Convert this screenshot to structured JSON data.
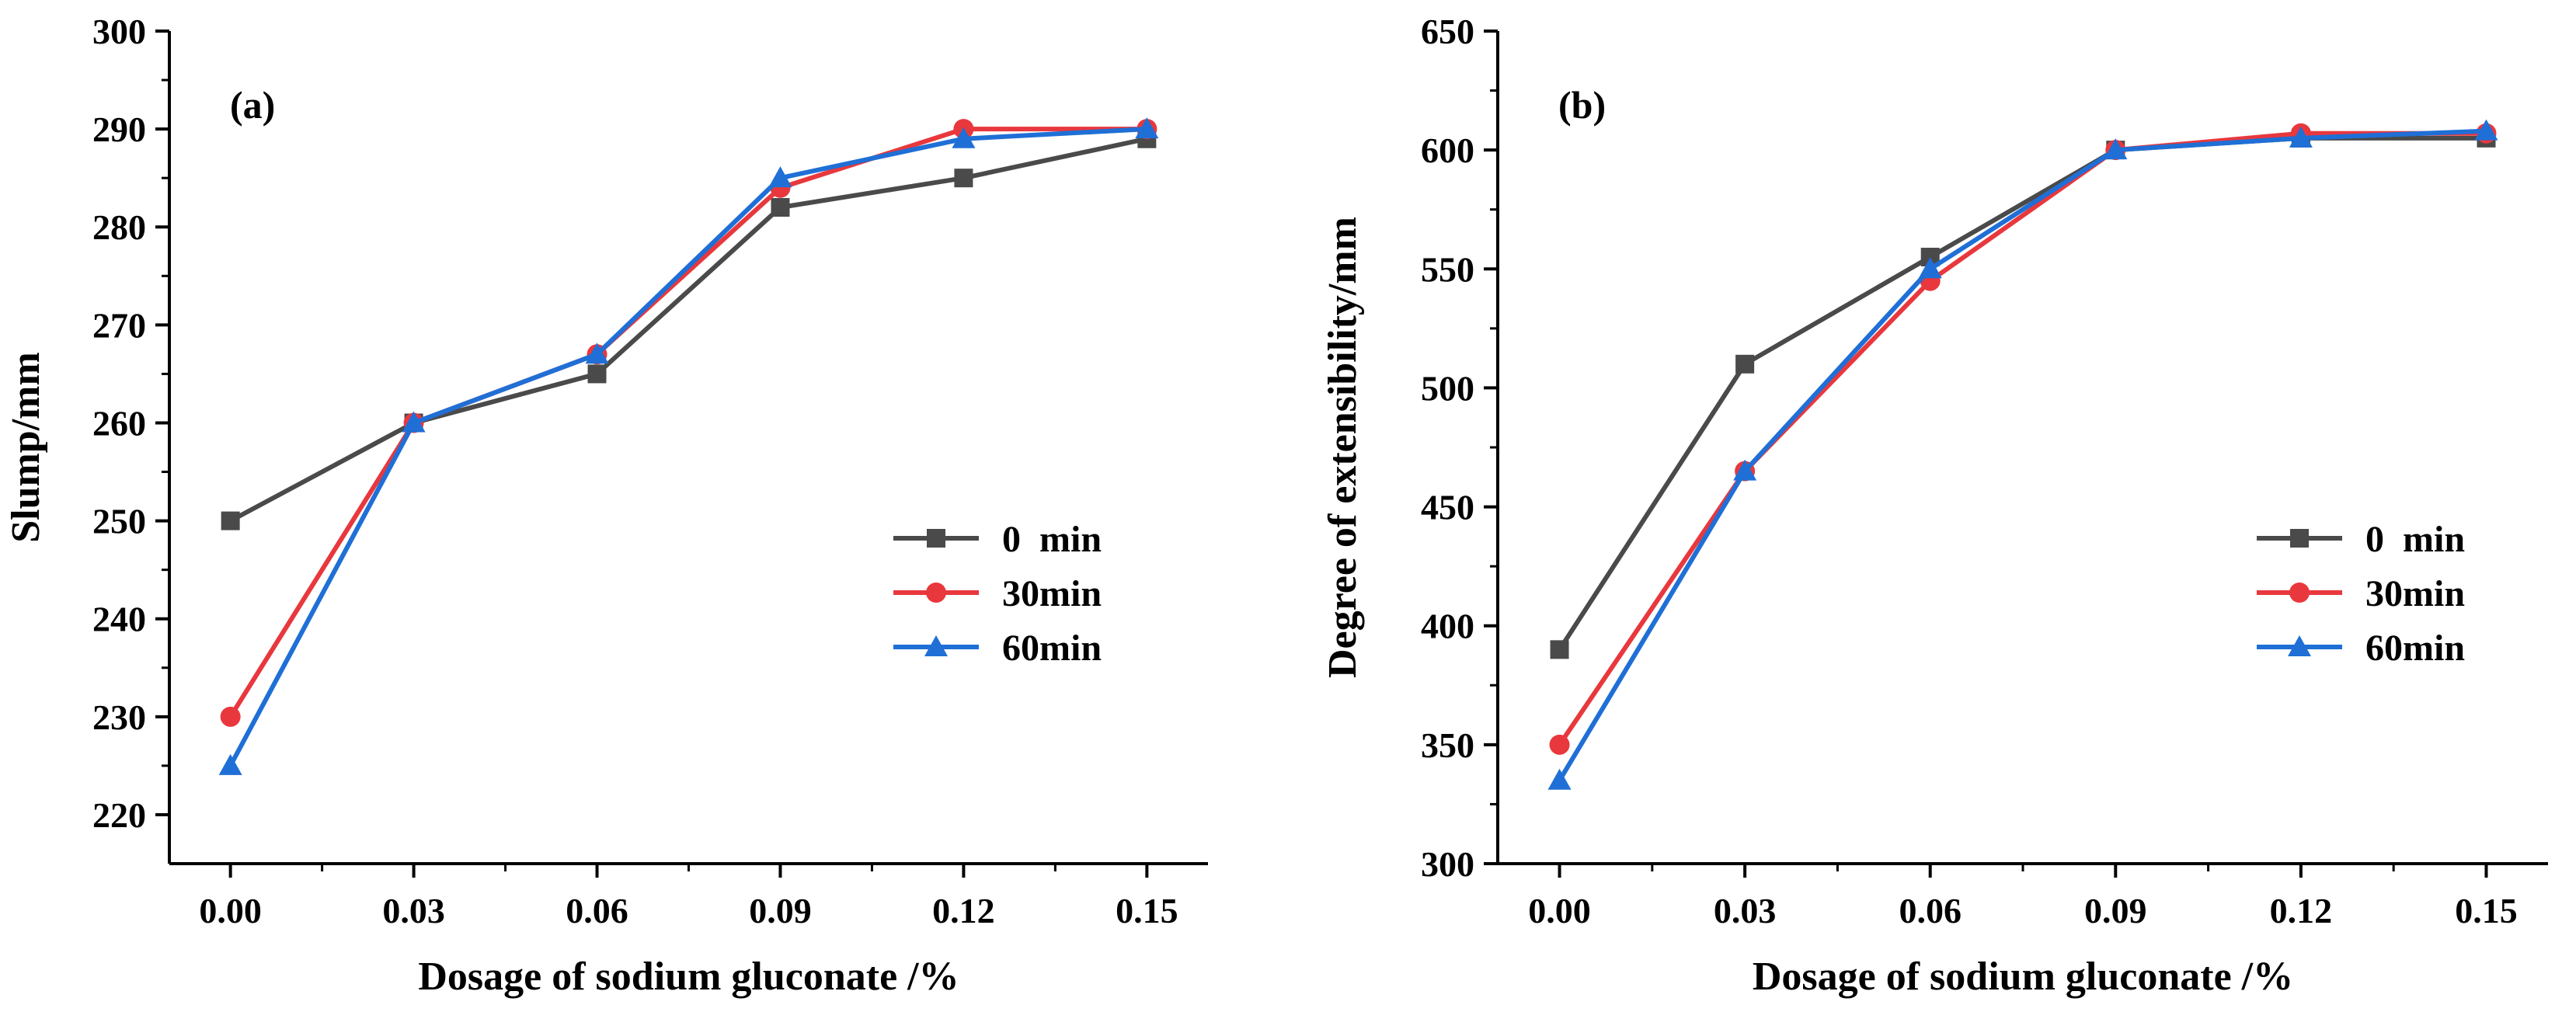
{
  "chart_data": [
    {
      "type": "line",
      "panel_label": "(a)",
      "xlabel": "Dosage of sodium gluconate /%",
      "ylabel": "Slump/mm",
      "categories": [
        "0.00",
        "0.03",
        "0.06",
        "0.09",
        "0.12",
        "0.15"
      ],
      "x": [
        0.0,
        0.03,
        0.06,
        0.09,
        0.12,
        0.15
      ],
      "xlim": [
        -0.01,
        0.16
      ],
      "ylim": [
        215,
        300
      ],
      "yticks": [
        220,
        230,
        240,
        250,
        260,
        270,
        280,
        290,
        300
      ],
      "legend_position": "lower-right",
      "series": [
        {
          "name": "0  min",
          "marker": "square",
          "color": "#4a4a4a",
          "values": [
            250,
            260,
            265,
            282,
            285,
            289
          ]
        },
        {
          "name": "30min",
          "marker": "circle",
          "color": "#e8383d",
          "values": [
            230,
            260,
            267,
            284,
            290,
            290
          ]
        },
        {
          "name": "60min",
          "marker": "triangle",
          "color": "#1f6fd6",
          "values": [
            225,
            260,
            267,
            285,
            289,
            290
          ]
        }
      ]
    },
    {
      "type": "line",
      "panel_label": "(b)",
      "xlabel": "Dosage of sodium gluconate /%",
      "ylabel": "Degree of extensibility/mm",
      "categories": [
        "0.00",
        "0.03",
        "0.06",
        "0.09",
        "0.12",
        "0.15"
      ],
      "x": [
        0.0,
        0.03,
        0.06,
        0.09,
        0.12,
        0.15
      ],
      "xlim": [
        -0.01,
        0.16
      ],
      "ylim": [
        300,
        650
      ],
      "yticks": [
        300,
        350,
        400,
        450,
        500,
        550,
        600,
        650
      ],
      "legend_position": "lower-right",
      "series": [
        {
          "name": "0  min",
          "marker": "square",
          "color": "#4a4a4a",
          "values": [
            390,
            510,
            555,
            600,
            605,
            605
          ]
        },
        {
          "name": "30min",
          "marker": "circle",
          "color": "#e8383d",
          "values": [
            350,
            465,
            545,
            600,
            607,
            607
          ]
        },
        {
          "name": "60min",
          "marker": "triangle",
          "color": "#1f6fd6",
          "values": [
            335,
            465,
            550,
            600,
            605,
            608
          ]
        }
      ]
    }
  ]
}
